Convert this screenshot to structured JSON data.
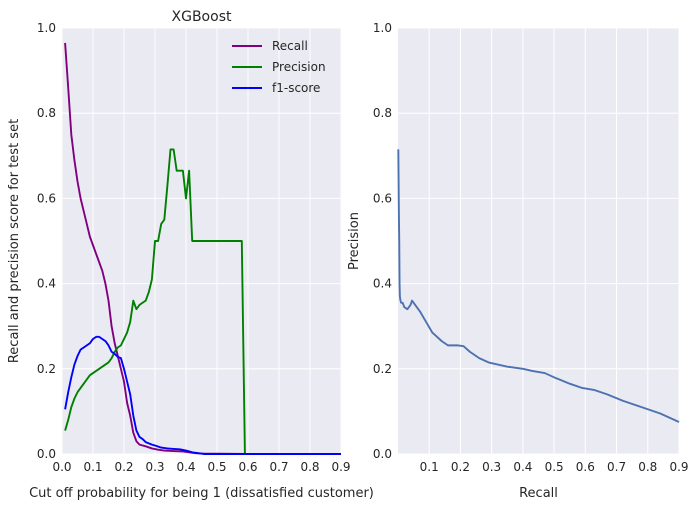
{
  "chart_data": [
    {
      "type": "line",
      "title": "XGBoost",
      "xlabel": "Cut off probability for being 1 (dissatisfied customer)",
      "ylabel": "Recall and precision score for test set",
      "xlim": [
        0.0,
        0.9
      ],
      "ylim": [
        0.0,
        1.0
      ],
      "xticks": [
        "0.0",
        "0.1",
        "0.2",
        "0.3",
        "0.4",
        "0.5",
        "0.6",
        "0.7",
        "0.8",
        "0.9"
      ],
      "yticks": [
        "0.0",
        "0.2",
        "0.4",
        "0.6",
        "0.8",
        "1.0"
      ],
      "grid": true,
      "legend_position": "top-right",
      "series": [
        {
          "name": "Recall",
          "color": "#800080",
          "points": [
            [
              0.01,
              0.965
            ],
            [
              0.02,
              0.86
            ],
            [
              0.03,
              0.75
            ],
            [
              0.04,
              0.69
            ],
            [
              0.05,
              0.64
            ],
            [
              0.06,
              0.6
            ],
            [
              0.07,
              0.57
            ],
            [
              0.08,
              0.54
            ],
            [
              0.09,
              0.51
            ],
            [
              0.1,
              0.49
            ],
            [
              0.11,
              0.47
            ],
            [
              0.12,
              0.45
            ],
            [
              0.13,
              0.43
            ],
            [
              0.14,
              0.4
            ],
            [
              0.15,
              0.36
            ],
            [
              0.16,
              0.3
            ],
            [
              0.17,
              0.26
            ],
            [
              0.18,
              0.23
            ],
            [
              0.19,
              0.2
            ],
            [
              0.2,
              0.17
            ],
            [
              0.21,
              0.12
            ],
            [
              0.22,
              0.09
            ],
            [
              0.23,
              0.05
            ],
            [
              0.24,
              0.03
            ],
            [
              0.25,
              0.022
            ],
            [
              0.27,
              0.018
            ],
            [
              0.29,
              0.013
            ],
            [
              0.31,
              0.01
            ],
            [
              0.33,
              0.008
            ],
            [
              0.36,
              0.007
            ],
            [
              0.39,
              0.006
            ],
            [
              0.41,
              0.004
            ],
            [
              0.43,
              0.002
            ],
            [
              0.45,
              0.001
            ],
            [
              0.6,
              0.0
            ],
            [
              0.9,
              0.0
            ]
          ]
        },
        {
          "name": "Precision",
          "color": "#008000",
          "points": [
            [
              0.01,
              0.055
            ],
            [
              0.02,
              0.08
            ],
            [
              0.03,
              0.11
            ],
            [
              0.04,
              0.13
            ],
            [
              0.05,
              0.145
            ],
            [
              0.06,
              0.155
            ],
            [
              0.07,
              0.165
            ],
            [
              0.08,
              0.175
            ],
            [
              0.09,
              0.185
            ],
            [
              0.1,
              0.19
            ],
            [
              0.11,
              0.195
            ],
            [
              0.12,
              0.2
            ],
            [
              0.13,
              0.205
            ],
            [
              0.14,
              0.21
            ],
            [
              0.15,
              0.215
            ],
            [
              0.16,
              0.225
            ],
            [
              0.17,
              0.24
            ],
            [
              0.18,
              0.25
            ],
            [
              0.19,
              0.255
            ],
            [
              0.2,
              0.27
            ],
            [
              0.21,
              0.285
            ],
            [
              0.22,
              0.31
            ],
            [
              0.23,
              0.36
            ],
            [
              0.24,
              0.34
            ],
            [
              0.25,
              0.35
            ],
            [
              0.26,
              0.355
            ],
            [
              0.27,
              0.36
            ],
            [
              0.28,
              0.38
            ],
            [
              0.29,
              0.41
            ],
            [
              0.3,
              0.5
            ],
            [
              0.31,
              0.5
            ],
            [
              0.32,
              0.54
            ],
            [
              0.33,
              0.55
            ],
            [
              0.34,
              0.63
            ],
            [
              0.35,
              0.715
            ],
            [
              0.36,
              0.715
            ],
            [
              0.37,
              0.665
            ],
            [
              0.38,
              0.665
            ],
            [
              0.39,
              0.665
            ],
            [
              0.4,
              0.6
            ],
            [
              0.41,
              0.665
            ],
            [
              0.42,
              0.5
            ],
            [
              0.58,
              0.5
            ],
            [
              0.59,
              0.0
            ],
            [
              0.9,
              0.0
            ]
          ]
        },
        {
          "name": "f1-score",
          "color": "#0000ff",
          "points": [
            [
              0.01,
              0.105
            ],
            [
              0.02,
              0.145
            ],
            [
              0.03,
              0.18
            ],
            [
              0.04,
              0.21
            ],
            [
              0.05,
              0.23
            ],
            [
              0.06,
              0.245
            ],
            [
              0.07,
              0.25
            ],
            [
              0.08,
              0.255
            ],
            [
              0.09,
              0.26
            ],
            [
              0.1,
              0.27
            ],
            [
              0.11,
              0.275
            ],
            [
              0.12,
              0.275
            ],
            [
              0.13,
              0.27
            ],
            [
              0.14,
              0.265
            ],
            [
              0.15,
              0.255
            ],
            [
              0.16,
              0.24
            ],
            [
              0.17,
              0.235
            ],
            [
              0.18,
              0.228
            ],
            [
              0.19,
              0.225
            ],
            [
              0.2,
              0.2
            ],
            [
              0.21,
              0.17
            ],
            [
              0.22,
              0.14
            ],
            [
              0.23,
              0.09
            ],
            [
              0.24,
              0.055
            ],
            [
              0.25,
              0.04
            ],
            [
              0.26,
              0.035
            ],
            [
              0.27,
              0.028
            ],
            [
              0.28,
              0.025
            ],
            [
              0.29,
              0.022
            ],
            [
              0.3,
              0.02
            ],
            [
              0.32,
              0.015
            ],
            [
              0.34,
              0.013
            ],
            [
              0.36,
              0.012
            ],
            [
              0.38,
              0.011
            ],
            [
              0.4,
              0.008
            ],
            [
              0.42,
              0.004
            ],
            [
              0.44,
              0.002
            ],
            [
              0.46,
              0.0
            ],
            [
              0.9,
              0.0
            ]
          ]
        }
      ]
    },
    {
      "type": "line",
      "title": "",
      "xlabel": "Recall",
      "ylabel": "Precision",
      "xlim": [
        0.0,
        0.9
      ],
      "ylim": [
        0.0,
        1.0
      ],
      "xticks": [
        "0.1",
        "0.2",
        "0.3",
        "0.4",
        "0.5",
        "0.6",
        "0.7",
        "0.8",
        "0.9"
      ],
      "yticks": [
        "0.0",
        "0.2",
        "0.4",
        "0.6",
        "0.8",
        "1.0"
      ],
      "grid": true,
      "series": [
        {
          "color": "#4c72b0",
          "points": [
            [
              0.001,
              0.715
            ],
            [
              0.003,
              0.55
            ],
            [
              0.004,
              0.5
            ],
            [
              0.005,
              0.4
            ],
            [
              0.006,
              0.37
            ],
            [
              0.008,
              0.36
            ],
            [
              0.01,
              0.355
            ],
            [
              0.015,
              0.355
            ],
            [
              0.02,
              0.345
            ],
            [
              0.03,
              0.34
            ],
            [
              0.04,
              0.35
            ],
            [
              0.045,
              0.36
            ],
            [
              0.05,
              0.355
            ],
            [
              0.07,
              0.335
            ],
            [
              0.09,
              0.31
            ],
            [
              0.11,
              0.285
            ],
            [
              0.14,
              0.265
            ],
            [
              0.16,
              0.255
            ],
            [
              0.19,
              0.255
            ],
            [
              0.21,
              0.253
            ],
            [
              0.23,
              0.24
            ],
            [
              0.26,
              0.225
            ],
            [
              0.29,
              0.215
            ],
            [
              0.35,
              0.205
            ],
            [
              0.4,
              0.2
            ],
            [
              0.43,
              0.195
            ],
            [
              0.47,
              0.19
            ],
            [
              0.5,
              0.18
            ],
            [
              0.55,
              0.165
            ],
            [
              0.59,
              0.155
            ],
            [
              0.63,
              0.15
            ],
            [
              0.67,
              0.14
            ],
            [
              0.72,
              0.125
            ],
            [
              0.78,
              0.11
            ],
            [
              0.84,
              0.095
            ],
            [
              0.9,
              0.075
            ]
          ]
        }
      ]
    }
  ]
}
